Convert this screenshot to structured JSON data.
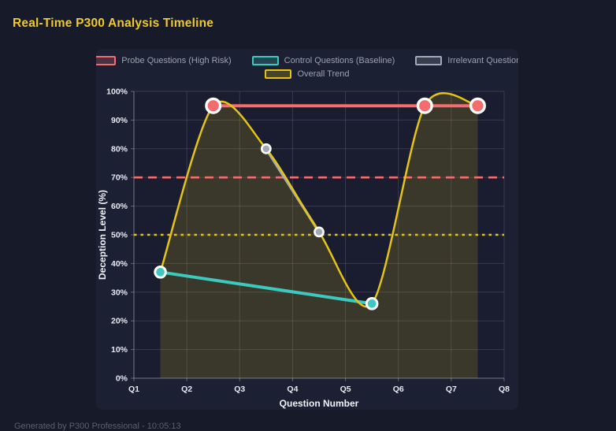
{
  "header": {
    "title": "Real-Time P300 Analysis Timeline"
  },
  "footer": {
    "note": "Generated by P300 Professional - 10:05:13"
  },
  "colors": {
    "page_background": "#171a29",
    "panel_background": "#1c2033",
    "plot_background": "#1a1d30",
    "grid": "rgba(255,255,255,0.13)",
    "axis": "rgba(255,255,255,0.30)",
    "tick_text": "#e8eaf0",
    "legend_text": "#9ba1ae",
    "title_text": "#f0c92a",
    "probe_red": "#f56c6c",
    "control_teal": "#3cc9bf",
    "irrelevant_gray": "#a3a9b5",
    "trend_yellow": "#e5c414"
  },
  "chart_data": {
    "type": "line",
    "title": "Real-Time P300 Analysis Timeline",
    "xlabel": "Question Number",
    "ylabel": "Deception Level (%)",
    "x_ticks": [
      "Q1",
      "Q2",
      "Q3",
      "Q4",
      "Q5",
      "Q6",
      "Q7",
      "Q8"
    ],
    "xlim": [
      1,
      8
    ],
    "ylim": [
      0,
      100
    ],
    "y_tick_step": 10,
    "y_tick_suffix": "%",
    "grid": true,
    "legend_position": "top",
    "series": [
      {
        "name": "Probe Questions (High Risk)",
        "color": "#f56c6c",
        "line_width": 4,
        "point_radius": 8.8,
        "point_border": 3.4,
        "smooth": false,
        "fill": false,
        "points": [
          [
            2.5,
            95
          ],
          [
            6.5,
            95
          ],
          [
            7.5,
            95
          ]
        ]
      },
      {
        "name": "Control Questions (Baseline)",
        "color": "#3cc9bf",
        "line_width": 4,
        "point_radius": 6.8,
        "point_border": 3.0,
        "smooth": false,
        "fill": false,
        "points": [
          [
            1.5,
            37
          ],
          [
            5.5,
            26
          ]
        ]
      },
      {
        "name": "Irrelevant Questions",
        "color": "#a3a9b5",
        "line_width": 3.5,
        "point_radius": 5.6,
        "point_border": 2.6,
        "smooth": false,
        "fill": false,
        "points": [
          [
            3.5,
            80
          ],
          [
            4.5,
            51
          ]
        ]
      },
      {
        "name": "Overall Trend",
        "color": "#e5c414",
        "line_width": 2.5,
        "point_radius": 0,
        "point_border": 0,
        "smooth": true,
        "fill": true,
        "fill_color": "rgba(229,196,20,0.16)",
        "points": [
          [
            1.5,
            37
          ],
          [
            2.5,
            95
          ],
          [
            3.5,
            80
          ],
          [
            4.5,
            51
          ],
          [
            5.5,
            26
          ],
          [
            6.5,
            95
          ],
          [
            7.5,
            95
          ]
        ]
      }
    ],
    "thresholds": [
      {
        "y": 70,
        "color": "#f56c6c",
        "dash": "11 7",
        "width": 2.6
      },
      {
        "y": 50,
        "color": "#e5c414",
        "dash": "3.5 5",
        "width": 2.6
      }
    ]
  }
}
